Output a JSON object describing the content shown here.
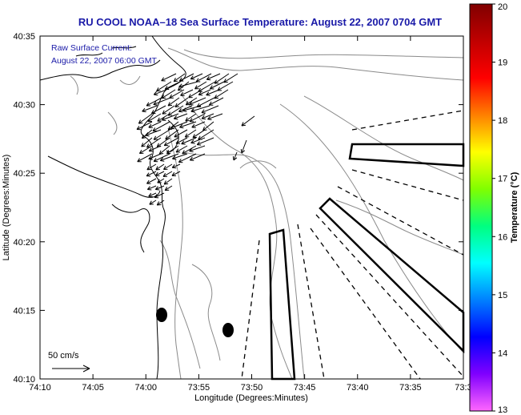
{
  "title": "RU COOL  NOAA–18  Sea Surface Temperature:  August 22, 2007 0704 GMT",
  "annotation": {
    "line1": "Raw Surface Current:",
    "line2": "August 22, 2007 06:00 GMT"
  },
  "axes": {
    "xlabel": "Longitude (Degrees:Minutes)",
    "ylabel": "Latitude (Degrees:Minutes)",
    "x_ticks": [
      "74:10",
      "74:05",
      "74:00",
      "73:55",
      "73:50",
      "73:45",
      "73:40",
      "73:35",
      "73:3"
    ],
    "y_ticks": [
      "40:35",
      "40:30",
      "40:25",
      "40:20",
      "40:15",
      "40:10"
    ]
  },
  "scale": {
    "label": "50 cm/s"
  },
  "colorbar": {
    "label": "Temperature (°C)",
    "ticks": [
      "20",
      "19",
      "18",
      "17",
      "16",
      "15",
      "14",
      "13"
    ],
    "min": 13,
    "max": 20,
    "colors": [
      "#ff66ff",
      "#8000ff",
      "#0000ff",
      "#0080ff",
      "#00ffff",
      "#00ff80",
      "#80ff00",
      "#ffff00",
      "#ff8000",
      "#ff0000",
      "#c00000",
      "#800000"
    ]
  },
  "colors": {
    "title": "#1a1aa8",
    "land_contour": "#000000",
    "bathymetry": "#888888"
  }
}
